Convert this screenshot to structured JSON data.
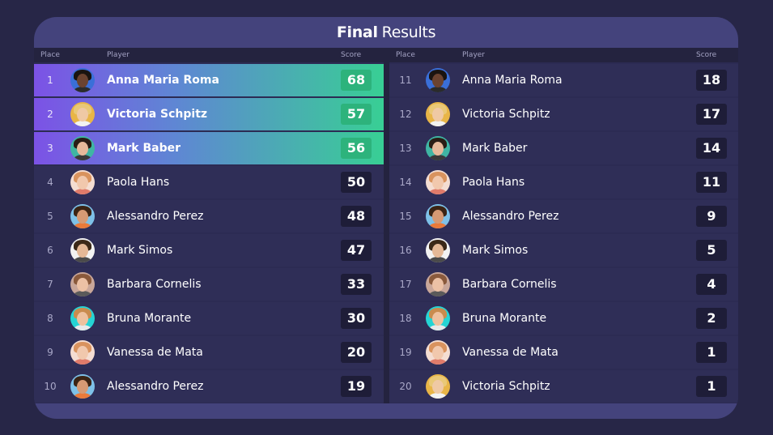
{
  "title": {
    "bold": "Final",
    "rest": "Results"
  },
  "headers": {
    "place": "Place",
    "player": "Player",
    "score": "Score"
  },
  "left_rows": [
    {
      "place": "1",
      "name": "Anna Maria Roma",
      "score": "68",
      "top": true,
      "avatar": "avatar-dark-curly"
    },
    {
      "place": "2",
      "name": "Victoria Schpitz",
      "score": "57",
      "top": true,
      "avatar": "avatar-blonde-sunglasses"
    },
    {
      "place": "3",
      "name": "Mark Baber",
      "score": "56",
      "top": true,
      "avatar": "avatar-man-dark-hair"
    },
    {
      "place": "4",
      "name": "Paola Hans",
      "score": "50",
      "top": false,
      "avatar": "avatar-strawberry-blonde"
    },
    {
      "place": "5",
      "name": "Alessandro Perez",
      "score": "48",
      "top": false,
      "avatar": "avatar-man-beard"
    },
    {
      "place": "6",
      "name": "Mark Simos",
      "score": "47",
      "top": false,
      "avatar": "avatar-man-curly"
    },
    {
      "place": "7",
      "name": "Barbara Cornelis",
      "score": "33",
      "top": false,
      "avatar": "avatar-woman-brown"
    },
    {
      "place": "8",
      "name": "Bruna Morante",
      "score": "30",
      "top": false,
      "avatar": "avatar-woman-teal-bg"
    },
    {
      "place": "9",
      "name": "Vanessa de Mata",
      "score": "20",
      "top": false,
      "avatar": "avatar-strawberry-blonde"
    },
    {
      "place": "10",
      "name": "Alessandro Perez",
      "score": "19",
      "top": false,
      "avatar": "avatar-man-beard"
    }
  ],
  "right_rows": [
    {
      "place": "11",
      "name": "Anna Maria Roma",
      "score": "18",
      "top": false,
      "avatar": "avatar-dark-curly"
    },
    {
      "place": "12",
      "name": "Victoria Schpitz",
      "score": "17",
      "top": false,
      "avatar": "avatar-blonde-sunglasses"
    },
    {
      "place": "13",
      "name": "Mark Baber",
      "score": "14",
      "top": false,
      "avatar": "avatar-man-dark-hair"
    },
    {
      "place": "14",
      "name": "Paola Hans",
      "score": "11",
      "top": false,
      "avatar": "avatar-strawberry-blonde"
    },
    {
      "place": "15",
      "name": "Alessandro Perez",
      "score": "9",
      "top": false,
      "avatar": "avatar-man-beard"
    },
    {
      "place": "16",
      "name": "Mark Simos",
      "score": "5",
      "top": false,
      "avatar": "avatar-man-curly"
    },
    {
      "place": "17",
      "name": "Barbara Cornelis",
      "score": "4",
      "top": false,
      "avatar": "avatar-woman-brown"
    },
    {
      "place": "18",
      "name": "Bruna Morante",
      "score": "2",
      "top": false,
      "avatar": "avatar-woman-teal-bg"
    },
    {
      "place": "19",
      "name": "Vanessa de Mata",
      "score": "1",
      "top": false,
      "avatar": "avatar-strawberry-blonde"
    },
    {
      "place": "20",
      "name": "Victoria Schpitz",
      "score": "1",
      "top": false,
      "avatar": "avatar-blonde-sunglasses"
    }
  ],
  "avatar_styles": {
    "avatar-dark-curly": {
      "bg": "#3a6fd8",
      "hair": "#1a1410",
      "face": "#6b4330",
      "body": "#2b2b2b"
    },
    "avatar-blonde-sunglasses": {
      "bg": "#e8b547",
      "hair": "#e9c877",
      "face": "#efc9a4",
      "body": "#f2f2f2"
    },
    "avatar-man-dark-hair": {
      "bg": "#3fb5a3",
      "hair": "#2a1d15",
      "face": "#e6b99a",
      "body": "#3a3a3a"
    },
    "avatar-strawberry-blonde": {
      "bg": "#f4ddd2",
      "hair": "#d9935e",
      "face": "#f1c8ad",
      "body": "#e07b6a"
    },
    "avatar-man-beard": {
      "bg": "#7ec1e8",
      "hair": "#3b2414",
      "face": "#d69a74",
      "body": "#ea7a3a"
    },
    "avatar-man-curly": {
      "bg": "#f2f2f2",
      "hair": "#3b2817",
      "face": "#e4b896",
      "body": "#4a4a4a"
    },
    "avatar-woman-brown": {
      "bg": "#c9a79a",
      "hair": "#8a5a3c",
      "face": "#ecc1a5",
      "body": "#5a5a5a"
    },
    "avatar-woman-teal-bg": {
      "bg": "#25d4d4",
      "hair": "#c98c4e",
      "face": "#eec19e",
      "body": "#e9e9e9"
    }
  }
}
